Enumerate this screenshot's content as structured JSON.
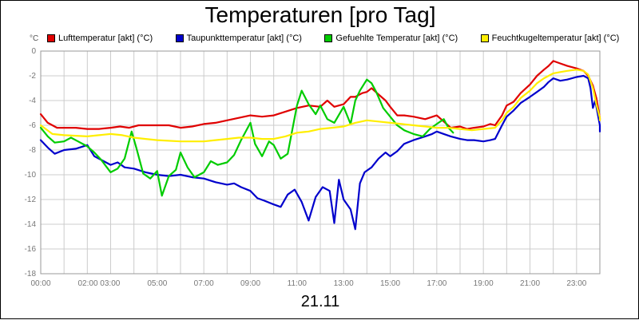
{
  "chart_data": {
    "type": "line",
    "title": "Temperaturen [pro Tag]",
    "xlabel": "21.11",
    "ylabel": "°C",
    "ylim": [
      -18,
      0
    ],
    "yticks": [
      0,
      -2,
      -4,
      -6,
      -8,
      -10,
      -12,
      -14,
      -16,
      -18
    ],
    "xlim": [
      0,
      24
    ],
    "xticks": [
      {
        "h": 0,
        "label": "00:00"
      },
      {
        "h": 2.5,
        "label": "02:00 03:00"
      },
      {
        "h": 5,
        "label": "05:00"
      },
      {
        "h": 7,
        "label": "07:00"
      },
      {
        "h": 9,
        "label": "09:00"
      },
      {
        "h": 11,
        "label": "11:00"
      },
      {
        "h": 13,
        "label": "13:00"
      },
      {
        "h": 15,
        "label": "15:00"
      },
      {
        "h": 17,
        "label": "17:00"
      },
      {
        "h": 19,
        "label": "19:00"
      },
      {
        "h": 21,
        "label": "21:00"
      },
      {
        "h": 23,
        "label": "23:00"
      }
    ],
    "grid": true,
    "legend_position": "top",
    "series": [
      {
        "name": "Lufttemperatur [akt] (°C)",
        "color": "#e00000",
        "points": [
          [
            0,
            -5.1
          ],
          [
            0.3,
            -5.8
          ],
          [
            0.7,
            -6.2
          ],
          [
            1.5,
            -6.2
          ],
          [
            2,
            -6.3
          ],
          [
            2.5,
            -6.3
          ],
          [
            3,
            -6.2
          ],
          [
            3.4,
            -6.1
          ],
          [
            3.8,
            -6.2
          ],
          [
            4.2,
            -6.0
          ],
          [
            5,
            -6.0
          ],
          [
            5.5,
            -6.0
          ],
          [
            6,
            -6.2
          ],
          [
            6.5,
            -6.1
          ],
          [
            7,
            -5.9
          ],
          [
            7.5,
            -5.8
          ],
          [
            8,
            -5.6
          ],
          [
            8.5,
            -5.4
          ],
          [
            9,
            -5.2
          ],
          [
            9.5,
            -5.3
          ],
          [
            10,
            -5.2
          ],
          [
            10.5,
            -4.9
          ],
          [
            11,
            -4.6
          ],
          [
            11.5,
            -4.4
          ],
          [
            12,
            -4.5
          ],
          [
            12.3,
            -4.0
          ],
          [
            12.6,
            -4.5
          ],
          [
            13,
            -4.3
          ],
          [
            13.3,
            -3.7
          ],
          [
            13.5,
            -3.7
          ],
          [
            13.8,
            -3.4
          ],
          [
            14,
            -3.3
          ],
          [
            14.2,
            -3.0
          ],
          [
            14.5,
            -3.5
          ],
          [
            14.8,
            -4.0
          ],
          [
            15,
            -4.5
          ],
          [
            15.3,
            -5.2
          ],
          [
            15.6,
            -5.2
          ],
          [
            16,
            -5.3
          ],
          [
            16.5,
            -5.5
          ],
          [
            17,
            -5.2
          ],
          [
            17.3,
            -5.7
          ],
          [
            17.6,
            -6.2
          ],
          [
            18,
            -6.1
          ],
          [
            18.3,
            -6.3
          ],
          [
            18.6,
            -6.2
          ],
          [
            19,
            -6.1
          ],
          [
            19.3,
            -5.9
          ],
          [
            19.5,
            -6.0
          ],
          [
            19.8,
            -5.2
          ],
          [
            20,
            -4.4
          ],
          [
            20.3,
            -4.1
          ],
          [
            20.6,
            -3.4
          ],
          [
            21,
            -2.7
          ],
          [
            21.3,
            -2.0
          ],
          [
            21.6,
            -1.5
          ],
          [
            21.8,
            -1.2
          ],
          [
            22,
            -0.8
          ],
          [
            22.3,
            -1.0
          ],
          [
            22.6,
            -1.2
          ],
          [
            23,
            -1.4
          ],
          [
            23.3,
            -1.6
          ],
          [
            23.5,
            -2.0
          ],
          [
            23.7,
            -2.8
          ],
          [
            23.85,
            -3.8
          ],
          [
            24,
            -5.4
          ],
          [
            24.2,
            -5.6
          ]
        ]
      },
      {
        "name": "Taupunkttemperatur [akt] (°C)",
        "color": "#0000cc",
        "points": [
          [
            0,
            -7.2
          ],
          [
            0.3,
            -7.8
          ],
          [
            0.6,
            -8.3
          ],
          [
            1,
            -8.0
          ],
          [
            1.5,
            -7.9
          ],
          [
            2,
            -7.6
          ],
          [
            2.3,
            -8.5
          ],
          [
            2.6,
            -8.8
          ],
          [
            3,
            -9.2
          ],
          [
            3.3,
            -9.0
          ],
          [
            3.6,
            -9.4
          ],
          [
            4,
            -9.5
          ],
          [
            4.5,
            -9.8
          ],
          [
            5,
            -10.0
          ],
          [
            5.5,
            -10.1
          ],
          [
            6,
            -10.0
          ],
          [
            6.5,
            -10.2
          ],
          [
            7,
            -10.3
          ],
          [
            7.5,
            -10.6
          ],
          [
            8,
            -10.8
          ],
          [
            8.3,
            -10.7
          ],
          [
            8.6,
            -11.0
          ],
          [
            9,
            -11.3
          ],
          [
            9.3,
            -11.9
          ],
          [
            9.6,
            -12.1
          ],
          [
            10,
            -12.4
          ],
          [
            10.3,
            -12.6
          ],
          [
            10.6,
            -11.6
          ],
          [
            10.9,
            -11.2
          ],
          [
            11.2,
            -12.2
          ],
          [
            11.5,
            -13.7
          ],
          [
            11.8,
            -11.8
          ],
          [
            12.1,
            -11.0
          ],
          [
            12.4,
            -11.3
          ],
          [
            12.6,
            -13.9
          ],
          [
            12.8,
            -10.4
          ],
          [
            13,
            -12.0
          ],
          [
            13.3,
            -12.8
          ],
          [
            13.5,
            -14.4
          ],
          [
            13.7,
            -10.7
          ],
          [
            13.9,
            -9.8
          ],
          [
            14.2,
            -9.4
          ],
          [
            14.5,
            -8.7
          ],
          [
            14.8,
            -8.2
          ],
          [
            15,
            -8.5
          ],
          [
            15.3,
            -8.1
          ],
          [
            15.6,
            -7.5
          ],
          [
            16,
            -7.2
          ],
          [
            16.5,
            -6.9
          ],
          [
            16.8,
            -6.7
          ],
          [
            17,
            -6.5
          ],
          [
            17.3,
            -6.7
          ],
          [
            17.6,
            -6.9
          ],
          [
            18,
            -7.1
          ],
          [
            18.3,
            -7.2
          ],
          [
            18.6,
            -7.2
          ],
          [
            19,
            -7.3
          ],
          [
            19.3,
            -7.2
          ],
          [
            19.5,
            -7.1
          ],
          [
            19.8,
            -6.0
          ],
          [
            20,
            -5.3
          ],
          [
            20.3,
            -4.8
          ],
          [
            20.6,
            -4.2
          ],
          [
            21,
            -3.7
          ],
          [
            21.3,
            -3.3
          ],
          [
            21.6,
            -2.9
          ],
          [
            21.8,
            -2.5
          ],
          [
            22,
            -2.2
          ],
          [
            22.3,
            -2.4
          ],
          [
            22.6,
            -2.3
          ],
          [
            23,
            -2.1
          ],
          [
            23.3,
            -2.0
          ],
          [
            23.5,
            -2.2
          ],
          [
            23.6,
            -3.0
          ],
          [
            23.7,
            -4.6
          ],
          [
            23.8,
            -4.0
          ],
          [
            24,
            -6.0
          ],
          [
            24.2,
            -6.5
          ]
        ]
      },
      {
        "name": "Gefuehlte Temperatur [akt] (°C)",
        "color": "#00cc00",
        "points": [
          [
            0,
            -6.2
          ],
          [
            0.3,
            -6.9
          ],
          [
            0.6,
            -7.4
          ],
          [
            1,
            -7.3
          ],
          [
            1.3,
            -7.0
          ],
          [
            1.6,
            -7.3
          ],
          [
            2,
            -7.7
          ],
          [
            2.3,
            -8.2
          ],
          [
            2.6,
            -8.8
          ],
          [
            3,
            -9.8
          ],
          [
            3.3,
            -9.5
          ],
          [
            3.6,
            -8.7
          ],
          [
            3.9,
            -6.5
          ],
          [
            4.1,
            -7.8
          ],
          [
            4.4,
            -9.9
          ],
          [
            4.7,
            -10.3
          ],
          [
            5,
            -9.7
          ],
          [
            5.2,
            -11.7
          ],
          [
            5.5,
            -10.1
          ],
          [
            5.8,
            -9.6
          ],
          [
            6,
            -8.2
          ],
          [
            6.3,
            -9.4
          ],
          [
            6.6,
            -10.2
          ],
          [
            7,
            -9.8
          ],
          [
            7.3,
            -8.9
          ],
          [
            7.6,
            -9.2
          ],
          [
            8,
            -9.0
          ],
          [
            8.3,
            -8.4
          ],
          [
            8.6,
            -7.2
          ],
          [
            9,
            -5.8
          ],
          [
            9.2,
            -7.5
          ],
          [
            9.5,
            -8.5
          ],
          [
            9.8,
            -7.3
          ],
          [
            10,
            -7.6
          ],
          [
            10.3,
            -8.7
          ],
          [
            10.6,
            -8.3
          ],
          [
            11,
            -4.4
          ],
          [
            11.2,
            -3.2
          ],
          [
            11.5,
            -4.3
          ],
          [
            11.8,
            -5.1
          ],
          [
            12,
            -4.4
          ],
          [
            12.3,
            -5.5
          ],
          [
            12.6,
            -5.8
          ],
          [
            13,
            -4.5
          ],
          [
            13.3,
            -5.9
          ],
          [
            13.5,
            -4.0
          ],
          [
            13.7,
            -3.2
          ],
          [
            14,
            -2.3
          ],
          [
            14.2,
            -2.6
          ],
          [
            14.4,
            -3.3
          ],
          [
            14.7,
            -4.6
          ],
          [
            15,
            -5.3
          ],
          [
            15.3,
            -6.0
          ],
          [
            15.6,
            -6.4
          ],
          [
            16,
            -6.7
          ],
          [
            16.4,
            -6.9
          ],
          [
            16.7,
            -6.3
          ],
          [
            17,
            -5.9
          ],
          [
            17.3,
            -5.5
          ],
          [
            17.5,
            -6.2
          ],
          [
            17.7,
            -6.6
          ]
        ]
      },
      {
        "name": "Feuchtkugeltemperatur [akt] (°C)",
        "color": "#ffee00",
        "points": [
          [
            0,
            -6.0
          ],
          [
            0.5,
            -6.7
          ],
          [
            1,
            -6.8
          ],
          [
            2,
            -6.9
          ],
          [
            2.5,
            -6.8
          ],
          [
            3,
            -6.7
          ],
          [
            3.5,
            -6.8
          ],
          [
            4,
            -7.0
          ],
          [
            4.5,
            -7.1
          ],
          [
            5,
            -7.2
          ],
          [
            6,
            -7.3
          ],
          [
            6.5,
            -7.3
          ],
          [
            7,
            -7.3
          ],
          [
            7.5,
            -7.2
          ],
          [
            8,
            -7.1
          ],
          [
            8.5,
            -7.0
          ],
          [
            9,
            -7.0
          ],
          [
            9.5,
            -7.1
          ],
          [
            10,
            -7.1
          ],
          [
            10.5,
            -6.9
          ],
          [
            11,
            -6.6
          ],
          [
            11.5,
            -6.5
          ],
          [
            12,
            -6.3
          ],
          [
            12.5,
            -6.2
          ],
          [
            13,
            -6.1
          ],
          [
            13.5,
            -5.8
          ],
          [
            14,
            -5.6
          ],
          [
            14.5,
            -5.7
          ],
          [
            15,
            -5.8
          ],
          [
            15.5,
            -5.9
          ],
          [
            16,
            -6.0
          ],
          [
            16.5,
            -6.1
          ],
          [
            17,
            -6.2
          ],
          [
            17.5,
            -6.2
          ],
          [
            18,
            -6.3
          ],
          [
            18.5,
            -6.4
          ],
          [
            19,
            -6.3
          ],
          [
            19.5,
            -6.2
          ],
          [
            19.8,
            -5.6
          ],
          [
            20,
            -5.0
          ],
          [
            20.3,
            -4.5
          ],
          [
            20.6,
            -3.8
          ],
          [
            21,
            -3.2
          ],
          [
            21.3,
            -2.6
          ],
          [
            21.6,
            -2.2
          ],
          [
            22,
            -1.8
          ],
          [
            22.3,
            -1.7
          ],
          [
            22.6,
            -1.6
          ],
          [
            23,
            -1.5
          ],
          [
            23.3,
            -1.6
          ],
          [
            23.5,
            -1.9
          ],
          [
            23.7,
            -3.0
          ],
          [
            23.85,
            -4.3
          ],
          [
            24,
            -5.4
          ],
          [
            24.2,
            -5.6
          ]
        ]
      }
    ]
  }
}
